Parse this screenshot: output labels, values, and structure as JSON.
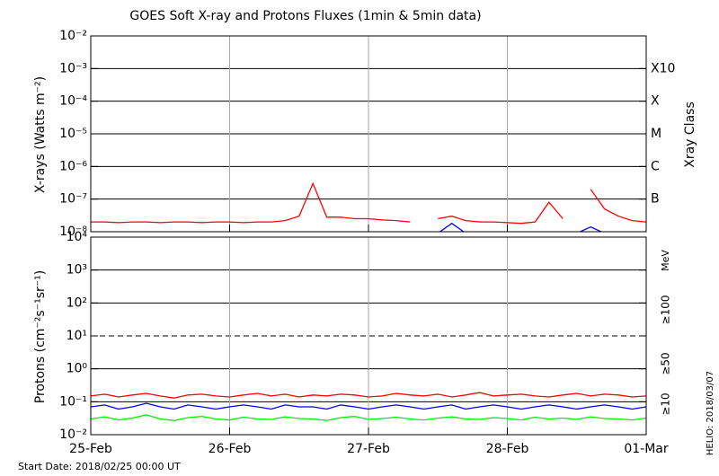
{
  "chart_data": [
    {
      "type": "line",
      "title": "GOES Soft X-ray and Protons Fluxes   (1min & 5min data)",
      "y_label": "X-rays (Watts m⁻²)",
      "right_axis_label": "Xray Class",
      "log_scale": true,
      "grid": true,
      "ylim": [
        1e-08,
        0.01
      ],
      "yticks": [
        {
          "value": 1e-08,
          "label": "10⁻⁸"
        },
        {
          "value": 1e-07,
          "label": "10⁻⁷"
        },
        {
          "value": 1e-06,
          "label": "10⁻⁶"
        },
        {
          "value": 1e-05,
          "label": "10⁻⁵"
        },
        {
          "value": 0.0001,
          "label": "10⁻⁴"
        },
        {
          "value": 0.001,
          "label": "10⁻³"
        },
        {
          "value": 0.01,
          "label": "10⁻²"
        }
      ],
      "right_labels": [
        {
          "value": 1e-07,
          "label": "B"
        },
        {
          "value": 1e-06,
          "label": "C"
        },
        {
          "value": 1e-05,
          "label": "M"
        },
        {
          "value": 0.0001,
          "label": "X"
        },
        {
          "value": 0.001,
          "label": "X10"
        }
      ],
      "xlim": [
        0,
        4
      ],
      "xticks": [
        0,
        1,
        2,
        3,
        4
      ],
      "x": [
        0,
        0.1,
        0.2,
        0.3,
        0.4,
        0.5,
        0.6,
        0.7,
        0.8,
        0.9,
        1,
        1.1,
        1.2,
        1.3,
        1.4,
        1.5,
        1.6,
        1.7,
        1.8,
        1.9,
        2,
        2.1,
        2.2,
        2.3,
        2.4,
        2.5,
        2.6,
        2.7,
        2.8,
        2.9,
        3,
        3.1,
        3.2,
        3.3,
        3.4,
        3.5,
        3.6,
        3.7,
        3.8,
        3.9,
        4
      ],
      "series": [
        {
          "color": "#ff0000",
          "values": [
            2e-08,
            2e-08,
            1.9e-08,
            2e-08,
            2e-08,
            1.9e-08,
            2e-08,
            2e-08,
            1.9e-08,
            2e-08,
            2e-08,
            1.9e-08,
            2e-08,
            2e-08,
            2.2e-08,
            3e-08,
            3e-07,
            2.8e-08,
            2.8e-08,
            2.5e-08,
            2.5e-08,
            2.3e-08,
            2.2e-08,
            2e-08,
            null,
            2.5e-08,
            3e-08,
            2.2e-08,
            2e-08,
            2e-08,
            1.9e-08,
            1.8e-08,
            2e-08,
            8e-08,
            2.5e-08,
            null,
            2e-07,
            5e-08,
            3e-08,
            2.2e-08,
            2e-08
          ]
        },
        {
          "color": "#0000ff",
          "values": [
            null,
            null,
            null,
            null,
            null,
            null,
            null,
            null,
            null,
            null,
            null,
            null,
            null,
            null,
            null,
            null,
            null,
            null,
            null,
            null,
            null,
            null,
            null,
            null,
            null,
            9e-09,
            1.8e-08,
            9e-09,
            null,
            null,
            null,
            null,
            null,
            null,
            null,
            9e-09,
            1.4e-08,
            9e-09,
            null,
            null,
            null
          ]
        }
      ]
    },
    {
      "type": "line",
      "y_label": "Protons (cm⁻²s⁻¹sr⁻¹)",
      "log_scale": true,
      "grid": true,
      "ylim": [
        0.01,
        10000
      ],
      "yticks": [
        {
          "value": 0.01,
          "label": "10⁻²"
        },
        {
          "value": 0.1,
          "label": "10⁻¹"
        },
        {
          "value": 1,
          "label": "10⁰"
        },
        {
          "value": 10,
          "label": "10¹"
        },
        {
          "value": 100,
          "label": "10²"
        },
        {
          "value": 1000,
          "label": "10³"
        },
        {
          "value": 10000,
          "label": "10⁴"
        }
      ],
      "reference_line": 10,
      "legend_title": "MeV",
      "xlim": [
        0,
        4
      ],
      "xticks": [
        {
          "value": 0,
          "label": "25-Feb"
        },
        {
          "value": 1,
          "label": "26-Feb"
        },
        {
          "value": 2,
          "label": "27-Feb"
        },
        {
          "value": 3,
          "label": "28-Feb"
        },
        {
          "value": 4,
          "label": "01-Mar"
        }
      ],
      "x": [
        0,
        0.1,
        0.2,
        0.3,
        0.4,
        0.5,
        0.6,
        0.7,
        0.8,
        0.9,
        1,
        1.1,
        1.2,
        1.3,
        1.4,
        1.5,
        1.6,
        1.7,
        1.8,
        1.9,
        2,
        2.1,
        2.2,
        2.3,
        2.4,
        2.5,
        2.6,
        2.7,
        2.8,
        2.9,
        3,
        3.1,
        3.2,
        3.3,
        3.4,
        3.5,
        3.6,
        3.7,
        3.8,
        3.9,
        4
      ],
      "series": [
        {
          "name": "≥10",
          "color": "#ff0000",
          "values": [
            0.15,
            0.17,
            0.14,
            0.16,
            0.18,
            0.15,
            0.13,
            0.16,
            0.17,
            0.15,
            0.14,
            0.16,
            0.18,
            0.15,
            0.17,
            0.14,
            0.16,
            0.15,
            0.17,
            0.16,
            0.14,
            0.15,
            0.18,
            0.16,
            0.15,
            0.17,
            0.14,
            0.16,
            0.19,
            0.15,
            0.16,
            0.17,
            0.15,
            0.14,
            0.16,
            0.18,
            0.15,
            0.17,
            0.16,
            0.14,
            0.15
          ]
        },
        {
          "name": "≥50",
          "color": "#0000ff",
          "values": [
            0.07,
            0.08,
            0.06,
            0.07,
            0.09,
            0.07,
            0.06,
            0.08,
            0.07,
            0.06,
            0.07,
            0.08,
            0.07,
            0.06,
            0.08,
            0.07,
            0.07,
            0.06,
            0.08,
            0.07,
            0.06,
            0.07,
            0.08,
            0.07,
            0.06,
            0.07,
            0.08,
            0.06,
            0.07,
            0.08,
            0.07,
            0.06,
            0.07,
            0.08,
            0.07,
            0.06,
            0.07,
            0.08,
            0.07,
            0.06,
            0.07
          ]
        },
        {
          "name": "≥100",
          "color": "#00ee00",
          "values": [
            0.03,
            0.035,
            0.028,
            0.032,
            0.04,
            0.03,
            0.027,
            0.033,
            0.036,
            0.03,
            0.028,
            0.034,
            0.03,
            0.029,
            0.035,
            0.031,
            0.03,
            0.027,
            0.033,
            0.036,
            0.029,
            0.031,
            0.034,
            0.03,
            0.028,
            0.032,
            0.035,
            0.03,
            0.029,
            0.033,
            0.031,
            0.028,
            0.034,
            0.03,
            0.032,
            0.029,
            0.035,
            0.031,
            0.03,
            0.028,
            0.032
          ]
        }
      ]
    }
  ],
  "footer": {
    "start_date": "Start Date: 2018/02/25 00:00 UT",
    "credit": "HELIO: 2018/03/07"
  }
}
